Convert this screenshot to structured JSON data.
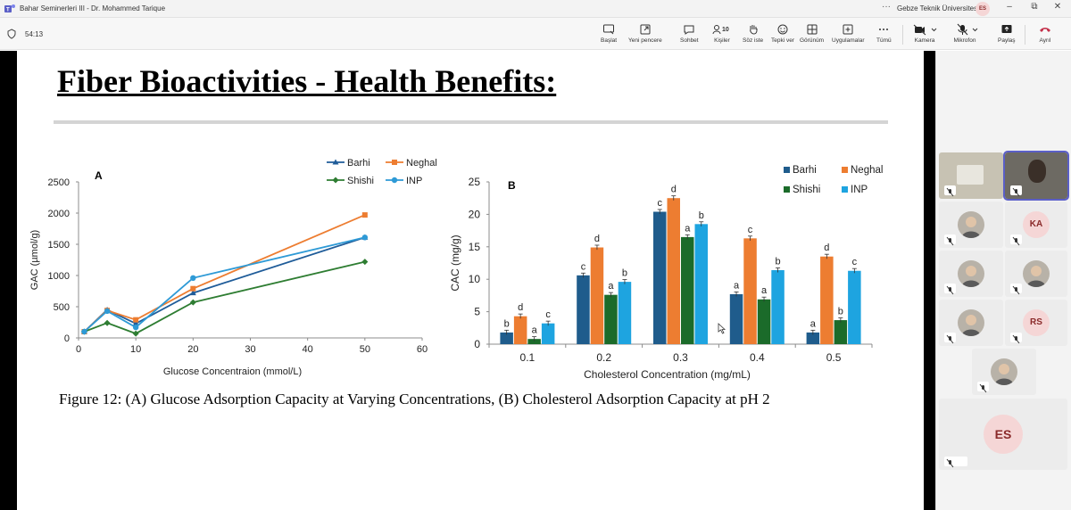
{
  "window": {
    "title": "Bahar Seminerleri III - Dr. Mohammed Tarique",
    "org": "Gebze Teknik Üniversitesi",
    "user_initials": "ES",
    "more_glyph": "···",
    "minimize_glyph": "–",
    "restore_glyph": "⧉",
    "close_glyph": "✕"
  },
  "toolbar": {
    "timer": "54:13",
    "people_count": "10",
    "buttons": {
      "start": "Başlat",
      "new_window": "Yeni pencere",
      "chat": "Sohbet",
      "people": "Kişiler",
      "raise_hand": "Söz iste",
      "react": "Tepki ver",
      "view": "Görünüm",
      "apps": "Uygulamalar",
      "more": "Tümü",
      "camera": "Kamera",
      "mic": "Mikrofon",
      "share": "Paylaş",
      "leave": "Ayrıl"
    },
    "leave_color": "#c4314b"
  },
  "slide": {
    "title": "Fiber Bioactivities - Health Benefits:",
    "caption": "Figure 12: (A) Glucose Adsorption Capacity at Varying Concentrations, (B) Cholesterol Adsorption Capacity at pH 2"
  },
  "participants": [
    {
      "kind": "video"
    },
    {
      "kind": "video"
    },
    {
      "kind": "photo"
    },
    {
      "kind": "initials",
      "initials": "KA"
    },
    {
      "kind": "photo"
    },
    {
      "kind": "photo"
    },
    {
      "kind": "photo"
    },
    {
      "kind": "initials",
      "initials": "RS"
    },
    {
      "kind": "photo"
    },
    {
      "kind": "initials",
      "initials": "ES"
    }
  ],
  "chart_data": [
    {
      "type": "line",
      "title": "A",
      "xlabel": "Glucose Concentraion (mmol/L)",
      "ylabel": "GAC (µmol/g)",
      "xlim": [
        0,
        60
      ],
      "ylim": [
        0,
        2500
      ],
      "xticks": [
        "0",
        "10",
        "20",
        "30",
        "40",
        "50",
        "60"
      ],
      "yticks": [
        "0",
        "500",
        "1000",
        "1500",
        "2000",
        "2500"
      ],
      "grid": false,
      "legend_position": "top-right",
      "x": [
        1,
        5,
        10,
        20,
        50
      ],
      "series": [
        {
          "name": "Barhi",
          "marker": "triangle",
          "color": "#1f5c99",
          "values": [
            100,
            450,
            230,
            720,
            1610
          ]
        },
        {
          "name": "Neghal",
          "marker": "square",
          "color": "#ed7d31",
          "values": [
            100,
            440,
            290,
            790,
            1970
          ]
        },
        {
          "name": "Shishi",
          "marker": "diamond",
          "color": "#2e7d32",
          "values": [
            100,
            240,
            70,
            570,
            1220
          ]
        },
        {
          "name": "INP",
          "marker": "circle",
          "color": "#2e9ad6",
          "values": [
            100,
            430,
            170,
            960,
            1610
          ]
        }
      ]
    },
    {
      "type": "bar",
      "title": "B",
      "xlabel": "Cholesterol Concentration (mg/mL)",
      "ylabel": "CAC (mg/g)",
      "ylim": [
        0,
        25
      ],
      "yticks": [
        "0",
        "5",
        "10",
        "15",
        "20",
        "25"
      ],
      "grid": false,
      "legend_position": "top-right",
      "categories": [
        "0.1",
        "0.2",
        "0.3",
        "0.4",
        "0.5"
      ],
      "series": [
        {
          "name": "Barhi",
          "color": "#1f5c8c",
          "values": [
            1.8,
            10.6,
            20.4,
            7.7,
            1.8
          ],
          "labels": [
            "b",
            "c",
            "c",
            "a",
            "a"
          ]
        },
        {
          "name": "Neghal",
          "color": "#ed7d31",
          "values": [
            4.3,
            14.9,
            22.5,
            16.3,
            13.5
          ],
          "labels": [
            "d",
            "d",
            "d",
            "c",
            "d"
          ]
        },
        {
          "name": "Shishi",
          "color": "#1b6b2a",
          "values": [
            0.8,
            7.6,
            16.5,
            6.9,
            3.7
          ],
          "labels": [
            "a",
            "a",
            "a",
            "a",
            "b"
          ]
        },
        {
          "name": "INP",
          "color": "#1ea4e0",
          "values": [
            3.2,
            9.6,
            18.5,
            11.4,
            11.3
          ],
          "labels": [
            "c",
            "b",
            "b",
            "b",
            "c"
          ]
        }
      ]
    }
  ]
}
